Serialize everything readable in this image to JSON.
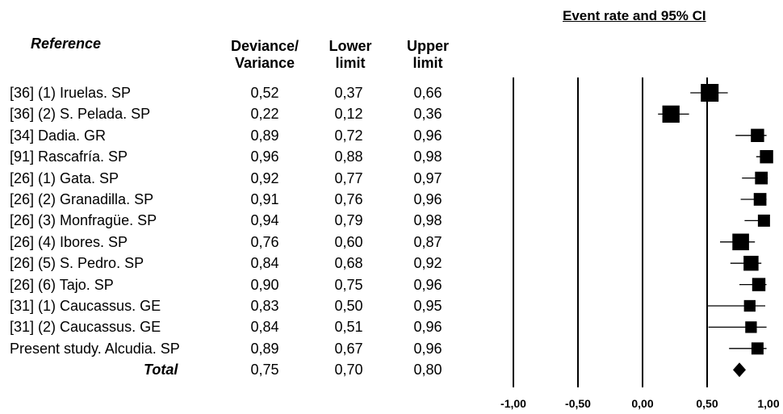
{
  "headers": {
    "reference": "Reference",
    "deviance_line1": "Deviance/",
    "deviance_line2": "Variance",
    "lower_line1": "Lower",
    "lower_line2": "limit",
    "upper_line1": "Upper",
    "upper_line2": "limit"
  },
  "chart_data": {
    "type": "forest",
    "title": "Event rate and 95% CI",
    "xlim": [
      -1.0,
      1.0
    ],
    "x_ticks": [
      "-1,00",
      "-0,50",
      "0,00",
      "0,50",
      "1,00"
    ],
    "reference_lines": [
      -1.0,
      -0.5,
      0.0,
      0.5
    ],
    "rows": [
      {
        "label": "[36] (1) Iruelas. SP",
        "value": 0.52,
        "lower": 0.37,
        "upper": 0.66,
        "value_text": "0,52",
        "lower_text": "0,37",
        "upper_text": "0,66",
        "weight": 1.0
      },
      {
        "label": "[36] (2) S. Pelada. SP",
        "value": 0.22,
        "lower": 0.12,
        "upper": 0.36,
        "value_text": "0,22",
        "lower_text": "0,12",
        "upper_text": "0,36",
        "weight": 0.95
      },
      {
        "label": "[34] Dadia. GR",
        "value": 0.89,
        "lower": 0.72,
        "upper": 0.96,
        "value_text": "0,89",
        "lower_text": "0,72",
        "upper_text": "0,96",
        "weight": 0.6
      },
      {
        "label": "[91] Rascafría. SP",
        "value": 0.96,
        "lower": 0.88,
        "upper": 0.98,
        "value_text": "0,96",
        "lower_text": "0,88",
        "upper_text": "0,98",
        "weight": 0.6
      },
      {
        "label": "[26] (1) Gata. SP",
        "value": 0.92,
        "lower": 0.77,
        "upper": 0.97,
        "value_text": "0,92",
        "lower_text": "0,77",
        "upper_text": "0,97",
        "weight": 0.55
      },
      {
        "label": "[26] (2) Granadilla. SP",
        "value": 0.91,
        "lower": 0.76,
        "upper": 0.96,
        "value_text": "0,91",
        "lower_text": "0,76",
        "upper_text": "0,96",
        "weight": 0.55
      },
      {
        "label": "[26] (3) Monfragüe. SP",
        "value": 0.94,
        "lower": 0.79,
        "upper": 0.98,
        "value_text": "0,94",
        "lower_text": "0,79",
        "upper_text": "0,98",
        "weight": 0.5
      },
      {
        "label": "[26] (4) Ibores. SP",
        "value": 0.76,
        "lower": 0.6,
        "upper": 0.87,
        "value_text": "0,76",
        "lower_text": "0,60",
        "upper_text": "0,87",
        "weight": 0.9
      },
      {
        "label": "[26] (5) S. Pedro. SP",
        "value": 0.84,
        "lower": 0.68,
        "upper": 0.92,
        "value_text": "0,84",
        "lower_text": "0,68",
        "upper_text": "0,92",
        "weight": 0.75
      },
      {
        "label": "[26] (6) Tajo. SP",
        "value": 0.9,
        "lower": 0.75,
        "upper": 0.96,
        "value_text": "0,90",
        "lower_text": "0,75",
        "upper_text": "0,96",
        "weight": 0.6
      },
      {
        "label": "[31] (1) Caucassus. GE",
        "value": 0.83,
        "lower": 0.5,
        "upper": 0.95,
        "value_text": "0,83",
        "lower_text": "0,50",
        "upper_text": "0,95",
        "weight": 0.45
      },
      {
        "label": "[31] (2) Caucassus. GE",
        "value": 0.84,
        "lower": 0.51,
        "upper": 0.96,
        "value_text": "0,84",
        "lower_text": "0,51",
        "upper_text": "0,96",
        "weight": 0.45
      },
      {
        "label": "Present study. Alcudia. SP",
        "value": 0.89,
        "lower": 0.67,
        "upper": 0.96,
        "value_text": "0,89",
        "lower_text": "0,67",
        "upper_text": "0,96",
        "weight": 0.5
      }
    ],
    "total": {
      "label": "Total",
      "value": 0.75,
      "lower": 0.7,
      "upper": 0.8,
      "value_text": "0,75",
      "lower_text": "0,70",
      "upper_text": "0,80"
    }
  }
}
